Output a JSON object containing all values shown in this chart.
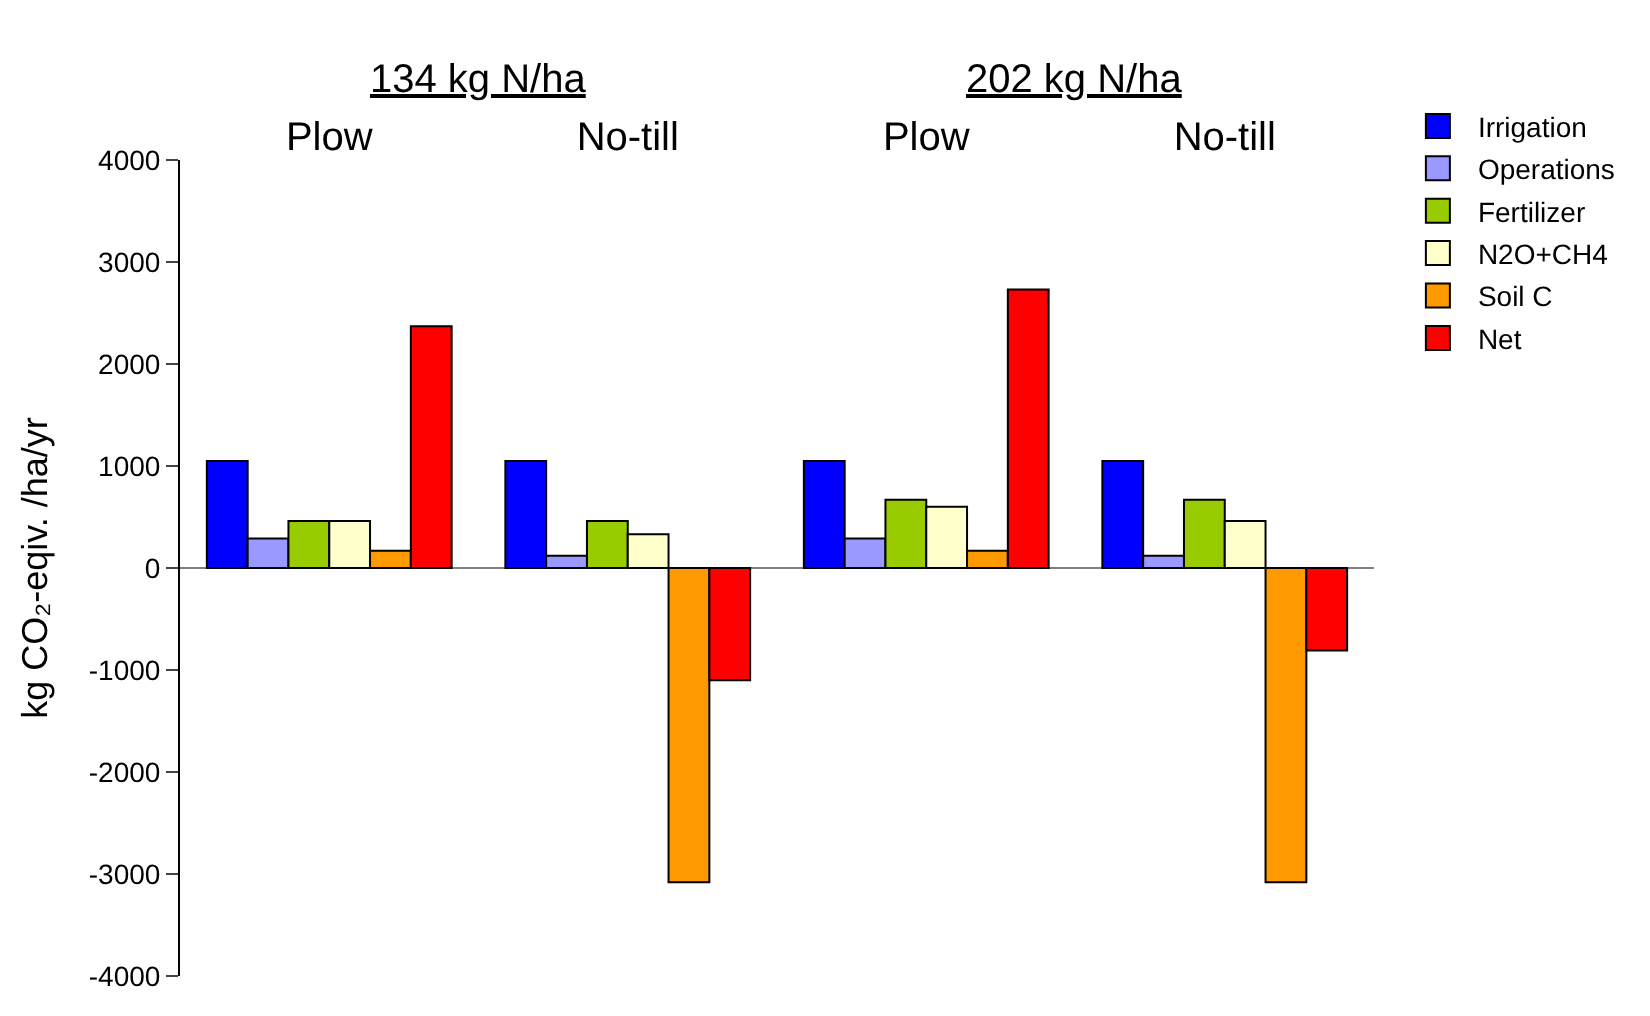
{
  "chart_data": {
    "type": "bar",
    "categories": [
      "Plow",
      "No-till",
      "Plow",
      "No-till"
    ],
    "ylabel": "kg CO₂-eqiv. /ha/yr",
    "annotations": [
      "134 kg N/ha",
      "202 kg N/ha"
    ],
    "series": [
      {
        "name": "Irrigation",
        "color": "#0000ff",
        "values": [
          1050,
          1050,
          1050,
          1050
        ]
      },
      {
        "name": "Operations",
        "color": "#9999ff",
        "values": [
          290,
          120,
          290,
          120
        ]
      },
      {
        "name": "Fertilizer",
        "color": "#99cc00",
        "values": [
          460,
          460,
          670,
          670
        ]
      },
      {
        "name": "N2O+CH4",
        "color": "#ffffcc",
        "values": [
          460,
          330,
          600,
          460
        ]
      },
      {
        "name": "Soil C",
        "color": "#ff9900",
        "values": [
          170,
          -3080,
          170,
          -3080
        ]
      },
      {
        "name": "Net",
        "color": "#ff0000",
        "values": [
          2370,
          -1100,
          2730,
          -810
        ]
      }
    ],
    "ylim": [
      -4000,
      4000
    ],
    "yticks": [
      -4000,
      -3000,
      -2000,
      -1000,
      0,
      1000,
      2000,
      3000,
      4000
    ],
    "legend": "top right"
  }
}
